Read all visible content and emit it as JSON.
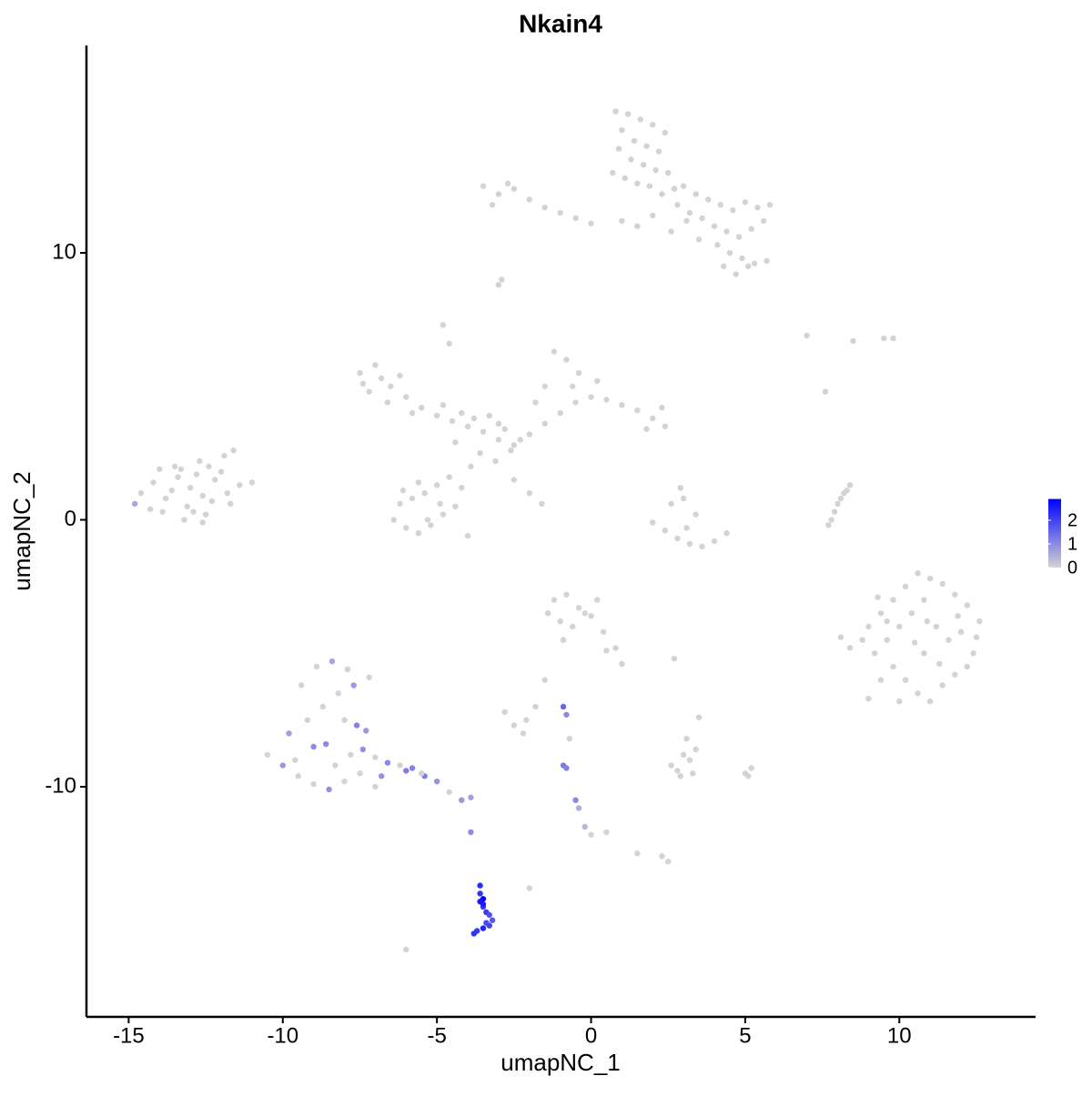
{
  "chart_data": {
    "type": "scatter",
    "title": "Nkain4",
    "x_label": "umapNC_1",
    "y_label": "umapNC_2",
    "xlim": [
      -16.37,
      14.42
    ],
    "ylim": [
      -18.62,
      17.77
    ],
    "xticks": [
      -15,
      -10,
      -5,
      0,
      5,
      10
    ],
    "yticks": [
      -10,
      0,
      10
    ],
    "colorbar": {
      "lim": [
        0,
        2.9
      ],
      "ticks": [
        0,
        1,
        2
      ],
      "low": "#d3d3d3",
      "high": "#0000ff"
    },
    "x": [
      0.8,
      1.2,
      1.6,
      2.0,
      2.4,
      1.0,
      1.4,
      1.8,
      2.2,
      0.9,
      1.3,
      1.7,
      2.1,
      2.5,
      0.7,
      1.1,
      1.5,
      1.9,
      2.3,
      2.7,
      3.0,
      3.4,
      3.8,
      4.2,
      4.6,
      5.0,
      5.4,
      5.8,
      3.2,
      3.6,
      4.0,
      4.4,
      4.8,
      5.2,
      5.6,
      4.1,
      4.5,
      4.9,
      5.3,
      5.7,
      4.7,
      5.1,
      2.8,
      3.1,
      3.5,
      1.0,
      1.5,
      2.0,
      2.6,
      4.3,
      -3.5,
      -3.0,
      -2.5,
      -2.0,
      -1.5,
      -1.0,
      -0.5,
      0.0,
      -3.2,
      -2.7,
      -7.5,
      -7.0,
      -6.5,
      -6.0,
      -5.5,
      -5.0,
      -4.5,
      -4.0,
      -3.5,
      -3.0,
      -2.5,
      -2.0,
      -1.5,
      -1.0,
      -0.5,
      0.0,
      0.5,
      1.0,
      1.5,
      2.0,
      2.4,
      -1.2,
      -0.8,
      -0.4,
      -1.5,
      -7.2,
      -6.8,
      -6.2,
      -5.8,
      -4.8,
      -4.2,
      -3.8,
      -3.3,
      -2.8,
      -2.3,
      -3.6,
      -3.1,
      -2.6,
      -4.4,
      -3.9,
      -4.6,
      -5.0,
      -5.4,
      -5.8,
      -6.2,
      -6.4,
      -6.0,
      -5.6,
      -5.2,
      -4.8,
      -4.4,
      -5.6,
      -6.1,
      -4.9,
      -4.2,
      -2.5,
      -2.0,
      -1.6,
      -4.6,
      -4.8,
      1.8,
      2.3,
      0.2,
      -0.6,
      -1.8,
      -6.6,
      -7.4,
      -3.0,
      -5.3,
      -4.0,
      -14.6,
      -14.2,
      -13.8,
      -13.4,
      -13.0,
      -12.6,
      -12.2,
      -11.8,
      -11.4,
      -11.0,
      -14.3,
      -13.9,
      -13.5,
      -13.1,
      -12.7,
      -12.3,
      -11.9,
      -13.6,
      -12.9,
      -12.0,
      -11.6,
      -12.4,
      -13.2,
      -14.0,
      -12.8,
      -11.7,
      -13.3,
      -12.5,
      -14.8,
      -12.6,
      2.0,
      2.4,
      2.8,
      3.2,
      3.6,
      4.0,
      4.4,
      2.6,
      3.0,
      3.4,
      3.1,
      2.9,
      7.8,
      7.9,
      8.0,
      8.1,
      8.2,
      8.3,
      8.4,
      7.7,
      7.0,
      8.5,
      9.5,
      9.8,
      7.6,
      -3.0,
      -2.9,
      9.0,
      9.4,
      9.8,
      10.2,
      10.6,
      11.0,
      11.4,
      11.8,
      12.2,
      12.6,
      9.2,
      9.6,
      10.0,
      10.4,
      10.8,
      11.2,
      11.6,
      12.0,
      12.4,
      9.8,
      10.2,
      10.6,
      11.0,
      11.4,
      11.8,
      12.2,
      8.8,
      9.4,
      10.0,
      10.8,
      11.3,
      10.5,
      9.6,
      11.9,
      8.1,
      8.4,
      10.9,
      9.0,
      12.5,
      9.3,
      -1.2,
      -0.8,
      -0.4,
      0.0,
      0.4,
      0.8,
      1.0,
      -1.0,
      -0.6,
      -0.2,
      0.2,
      -1.4,
      -0.9,
      0.5,
      -1.5,
      -1.8,
      -2.1,
      -2.5,
      -2.8,
      -2.2,
      2.6,
      2.8,
      3.0,
      3.2,
      3.4,
      2.9,
      3.3,
      3.1,
      5.0,
      5.1,
      5.2,
      3.5,
      2.7,
      -2.0,
      -6.0,
      1.5,
      2.3,
      2.5,
      0.5,
      0.0,
      -10.5,
      -10.0,
      -9.5,
      -9.0,
      -8.5,
      -8.0,
      -7.5,
      -7.0,
      -9.8,
      -9.2,
      -8.7,
      -8.2,
      -7.7,
      -7.2,
      -8.9,
      -8.4,
      -7.9,
      -9.4,
      -8.6,
      -7.8,
      -7.4,
      -7.0,
      -6.6,
      -6.2,
      -5.8,
      -5.4,
      -5.0,
      -4.6,
      -4.2,
      -3.9,
      -9.0,
      -8.0,
      -7.6,
      -6.8,
      -9.6,
      -8.3,
      -7.3,
      -6.0,
      -5.5,
      -3.9,
      -0.9,
      -0.8,
      -0.9,
      -0.8,
      -0.5,
      -0.4,
      -0.2,
      -0.7,
      -3.6,
      -3.6,
      -3.5,
      -3.5,
      -3.4,
      -3.3,
      -3.2,
      -3.3,
      -3.5,
      -3.7,
      -3.8,
      -3.4,
      -3.5,
      -3.6
    ],
    "y": [
      15.3,
      15.2,
      15.0,
      14.8,
      14.5,
      14.6,
      14.2,
      14.0,
      13.8,
      13.9,
      13.5,
      13.3,
      13.1,
      13.0,
      13.0,
      12.8,
      12.6,
      12.5,
      12.2,
      12.4,
      12.5,
      12.2,
      12.0,
      11.8,
      11.6,
      11.9,
      11.7,
      11.8,
      11.5,
      11.3,
      11.0,
      10.8,
      10.6,
      10.9,
      11.2,
      10.3,
      10.0,
      9.8,
      9.6,
      9.7,
      9.2,
      9.5,
      11.8,
      11.2,
      10.5,
      11.2,
      11.0,
      11.4,
      10.8,
      9.5,
      12.5,
      12.2,
      12.4,
      12.0,
      11.7,
      11.5,
      11.3,
      11.1,
      11.8,
      12.6,
      5.5,
      5.8,
      5.0,
      4.6,
      4.2,
      3.9,
      3.7,
      3.5,
      3.3,
      3.0,
      2.8,
      3.2,
      3.6,
      4.0,
      4.4,
      4.6,
      4.5,
      4.3,
      4.1,
      3.8,
      3.5,
      6.3,
      6.0,
      5.5,
      5.0,
      4.8,
      5.3,
      5.4,
      4.0,
      4.3,
      4.0,
      3.8,
      3.9,
      3.4,
      3.0,
      2.5,
      2.2,
      2.6,
      2.9,
      2.0,
      1.6,
      1.3,
      1.0,
      0.8,
      0.6,
      0.0,
      -0.3,
      -0.5,
      -0.2,
      0.2,
      0.5,
      1.4,
      1.1,
      0.6,
      1.2,
      1.5,
      1.0,
      0.6,
      6.6,
      7.3,
      3.4,
      4.2,
      5.2,
      5.0,
      4.4,
      4.4,
      5.1,
      3.6,
      0.0,
      -0.6,
      1.0,
      1.4,
      0.8,
      1.6,
      1.2,
      0.9,
      1.5,
      1.0,
      1.3,
      1.4,
      0.4,
      0.3,
      2.0,
      0.5,
      2.2,
      0.7,
      2.4,
      1.1,
      0.3,
      1.8,
      2.6,
      2.0,
      0.0,
      1.9,
      1.7,
      0.6,
      1.9,
      0.2,
      0.6,
      -0.1,
      -0.1,
      -0.4,
      -0.7,
      -0.9,
      -1.0,
      -0.8,
      -0.5,
      0.6,
      0.8,
      0.2,
      -0.3,
      1.2,
      0.0,
      0.3,
      0.6,
      0.8,
      1.0,
      1.1,
      1.3,
      -0.2,
      6.9,
      6.7,
      6.8,
      6.8,
      4.8,
      8.8,
      9.0,
      -4.0,
      -3.5,
      -3.0,
      -2.5,
      -2.0,
      -2.2,
      -2.4,
      -2.8,
      -3.2,
      -3.8,
      -5.0,
      -4.5,
      -4.0,
      -3.5,
      -3.0,
      -4.0,
      -4.5,
      -4.2,
      -5.0,
      -5.5,
      -6.0,
      -6.5,
      -6.8,
      -6.2,
      -5.8,
      -5.5,
      -4.5,
      -6.0,
      -6.8,
      -5.0,
      -5.4,
      -4.6,
      -3.8,
      -3.6,
      -4.4,
      -4.8,
      -3.8,
      -6.7,
      -4.4,
      -2.9,
      -3.0,
      -2.8,
      -3.3,
      -3.6,
      -4.2,
      -4.8,
      -5.4,
      -3.8,
      -4.0,
      -3.5,
      -3.0,
      -3.5,
      -4.5,
      -4.9,
      -6.0,
      -7.0,
      -7.5,
      -7.7,
      -7.2,
      -8.0,
      -9.2,
      -9.4,
      -8.8,
      -9.0,
      -8.6,
      -9.6,
      -9.5,
      -8.2,
      -9.5,
      -9.6,
      -9.3,
      -7.4,
      -5.2,
      -13.8,
      -16.1,
      -12.5,
      -12.6,
      -12.8,
      -11.7,
      -11.8,
      -8.8,
      -9.2,
      -9.6,
      -9.9,
      -10.1,
      -9.8,
      -9.5,
      -10.0,
      -8.0,
      -7.5,
      -7.0,
      -6.5,
      -6.2,
      -5.9,
      -5.5,
      -5.3,
      -5.6,
      -6.2,
      -8.4,
      -8.8,
      -8.6,
      -8.9,
      -9.1,
      -9.2,
      -9.3,
      -9.6,
      -9.8,
      -10.2,
      -10.5,
      -10.4,
      -8.5,
      -7.5,
      -7.7,
      -9.6,
      -9.0,
      -9.2,
      -7.9,
      -9.4,
      -9.5,
      -11.7,
      -7.0,
      -7.3,
      -9.2,
      -9.3,
      -10.5,
      -10.8,
      -11.5,
      -8.2,
      -13.7,
      -14.0,
      -14.2,
      -14.5,
      -14.7,
      -14.8,
      -15.0,
      -15.2,
      -15.3,
      -15.4,
      -15.5,
      -15.1,
      -14.4,
      -14.3
    ],
    "values": [
      0,
      0,
      0,
      0,
      0,
      0,
      0,
      0,
      0,
      0,
      0,
      0,
      0,
      0,
      0,
      0,
      0,
      0,
      0,
      0,
      0,
      0,
      0,
      0,
      0,
      0,
      0,
      0,
      0,
      0,
      0,
      0,
      0,
      0,
      0,
      0,
      0,
      0,
      0,
      0,
      0,
      0,
      0,
      0,
      0,
      0,
      0,
      0,
      0,
      0,
      0,
      0,
      0,
      0,
      0,
      0,
      0,
      0,
      0,
      0,
      0,
      0,
      0,
      0,
      0,
      0,
      0,
      0,
      0,
      0,
      0,
      0,
      0,
      0,
      0,
      0,
      0,
      0,
      0,
      0,
      0,
      0,
      0,
      0,
      0,
      0,
      0,
      0,
      0,
      0,
      0,
      0,
      0,
      0,
      0,
      0,
      0,
      0,
      0,
      0,
      0,
      0,
      0,
      0,
      0,
      0,
      0,
      0,
      0,
      0,
      0,
      0,
      0,
      0,
      0,
      0,
      0,
      0,
      0,
      0,
      0,
      0,
      0,
      0,
      0,
      0,
      0,
      0,
      0,
      0,
      0,
      0,
      0,
      0,
      0,
      0,
      0,
      0,
      0,
      0,
      0,
      0,
      0,
      0,
      0,
      0,
      0,
      0,
      0,
      0,
      0,
      0,
      0,
      0,
      0,
      0,
      0,
      0,
      0.6,
      0,
      0,
      0,
      0,
      0,
      0,
      0,
      0,
      0,
      0,
      0,
      0,
      0,
      0,
      0,
      0,
      0,
      0,
      0,
      0,
      0,
      0,
      0,
      0,
      0,
      0,
      0,
      0,
      0,
      0,
      0,
      0,
      0,
      0,
      0,
      0,
      0,
      0,
      0,
      0,
      0,
      0,
      0,
      0,
      0,
      0,
      0,
      0,
      0,
      0,
      0,
      0,
      0,
      0,
      0,
      0,
      0,
      0,
      0,
      0,
      0,
      0,
      0,
      0,
      0,
      0,
      0,
      0,
      0,
      0,
      0,
      0,
      0,
      0,
      0,
      0,
      0,
      0,
      0,
      0,
      0,
      0,
      0,
      0,
      0,
      0,
      0,
      0,
      0,
      0,
      0,
      0,
      0,
      0,
      0,
      0,
      0,
      0,
      0,
      0,
      0,
      0,
      0,
      0,
      0,
      0,
      0,
      0,
      0,
      0.8,
      0,
      0,
      0.9,
      0,
      0,
      0,
      0.7,
      0,
      0,
      0,
      0.8,
      0,
      0,
      0.6,
      0,
      0,
      1.0,
      0,
      0.9,
      0,
      1.0,
      0,
      1.1,
      1.2,
      0.9,
      0,
      0.8,
      0.7,
      1.0,
      0,
      1.1,
      0.9,
      0,
      0,
      0.8,
      1.2,
      0,
      1.0,
      1.5,
      1.0,
      1.2,
      1.1,
      1.0,
      0.5,
      0.4,
      0,
      2.3,
      2.2,
      2.9,
      2.0,
      2.1,
      1.8,
      1.7,
      2.0,
      2.4,
      2.1,
      2.2,
      1.9,
      2.5,
      2.6
    ]
  }
}
